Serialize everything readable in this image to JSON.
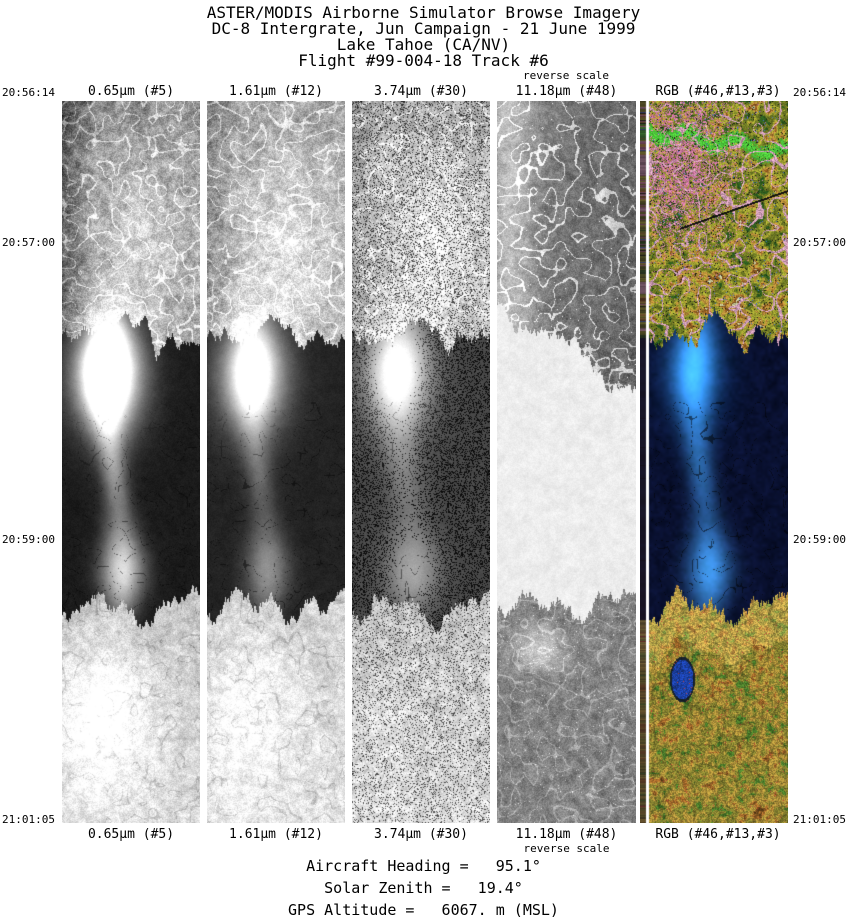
{
  "header": {
    "line1": "ASTER/MODIS Airborne Simulator Browse Imagery",
    "line2": "DC-8 Intergrate, Jun Campaign - 21 June 1999",
    "line3": "Lake Tahoe (CA/NV)",
    "line4": "Flight #99-004-18 Track #6"
  },
  "strips": [
    {
      "id": "band5",
      "label": "0.65μm (#5)"
    },
    {
      "id": "band12",
      "label": "1.61μm (#12)"
    },
    {
      "id": "band30",
      "label": "3.74μm (#30)"
    },
    {
      "id": "band48",
      "label": "11.18μm (#48)",
      "note": "reverse scale"
    },
    {
      "id": "rgb",
      "label": "RGB (#46,#13,#3)"
    }
  ],
  "timeticks": [
    "20:56:14",
    "20:57:00",
    "20:59:00",
    "21:01:05"
  ],
  "footer": {
    "aircraft_heading": "Aircraft Heading =   95.1°",
    "solar_zenith": "Solar Zenith =   19.4°",
    "gps_altitude": "GPS Altitude =   6067. m (MSL)"
  },
  "colors": {
    "background": "#ffffff",
    "text": "#000000",
    "lake_dark": "#03081c",
    "lake_glint": "#46aaf0",
    "small_lake_blue": "#1e46aa"
  }
}
